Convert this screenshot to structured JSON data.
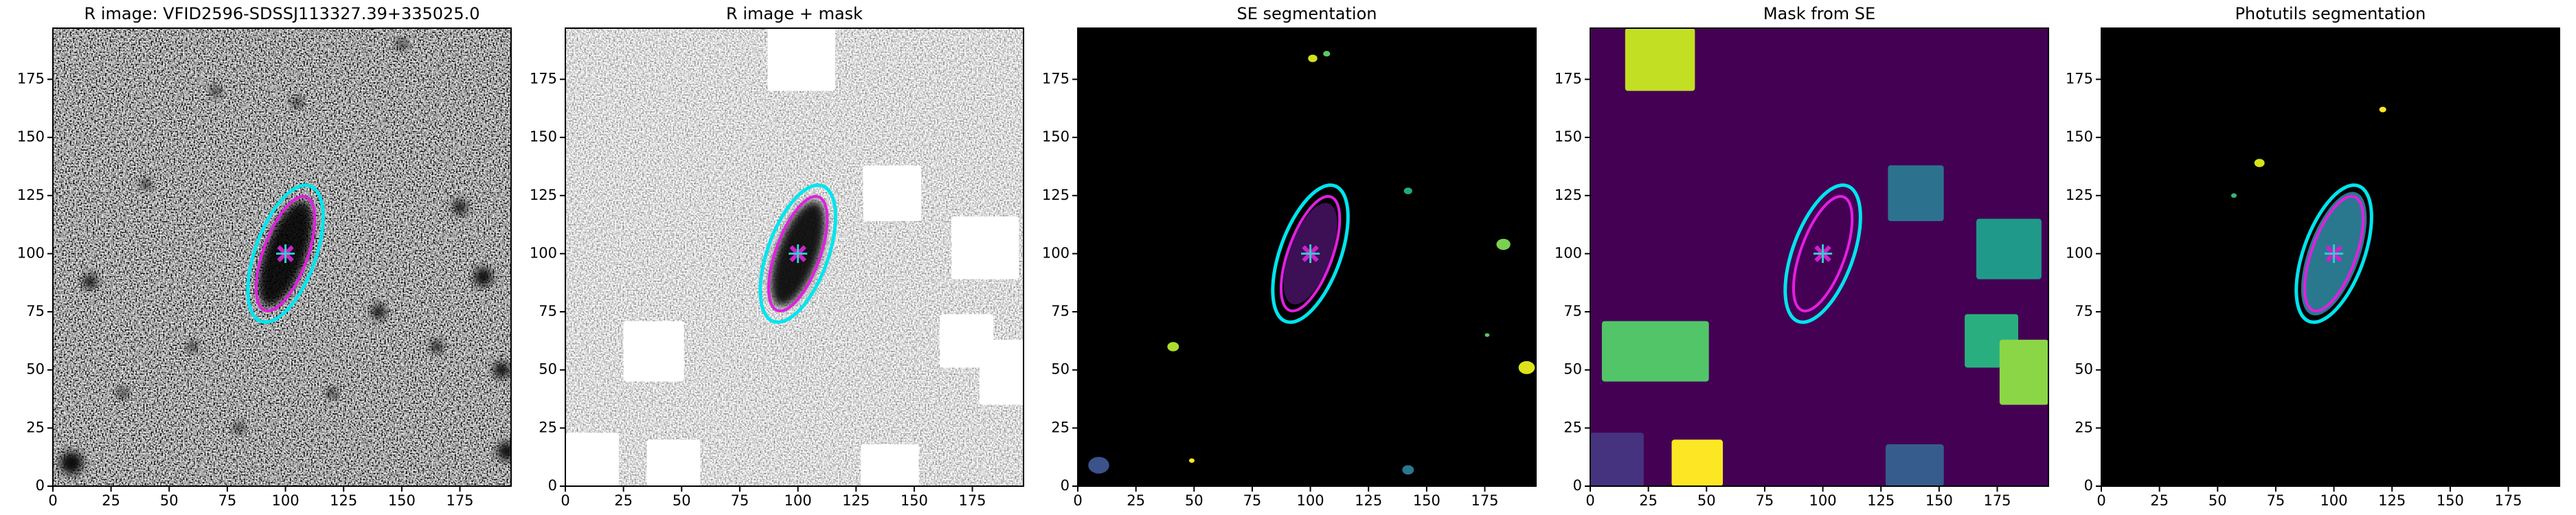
{
  "chart_data": [
    {
      "type": "image",
      "title": "R image: VFID2596-SDSSJ113327.39+335025.0",
      "xlim": [
        0,
        197
      ],
      "ylim": [
        0,
        197
      ],
      "xticks": [
        0,
        25,
        50,
        75,
        100,
        125,
        150,
        175
      ],
      "yticks": [
        0,
        25,
        50,
        75,
        100,
        125,
        150,
        175
      ]
    },
    {
      "type": "image",
      "title": "R image + mask",
      "xlim": [
        0,
        197
      ],
      "ylim": [
        0,
        197
      ],
      "xticks": [
        0,
        25,
        50,
        75,
        100,
        125,
        150,
        175
      ],
      "yticks": [
        0,
        25,
        50,
        75,
        100,
        125,
        150,
        175
      ]
    },
    {
      "type": "image",
      "title": "SE segmentation",
      "xlim": [
        0,
        197
      ],
      "ylim": [
        0,
        197
      ],
      "xticks": [
        0,
        25,
        50,
        75,
        100,
        125,
        150,
        175
      ],
      "yticks": [
        0,
        25,
        50,
        75,
        100,
        125,
        150,
        175
      ]
    },
    {
      "type": "image",
      "title": "Mask from SE",
      "xlim": [
        0,
        197
      ],
      "ylim": [
        0,
        197
      ],
      "xticks": [
        0,
        25,
        50,
        75,
        100,
        125,
        150,
        175
      ],
      "yticks": [
        0,
        25,
        50,
        75,
        100,
        125,
        150,
        175
      ]
    },
    {
      "type": "image",
      "title": "Photutils segmentation",
      "xlim": [
        0,
        197
      ],
      "ylim": [
        0,
        197
      ],
      "xticks": [
        0,
        25,
        50,
        75,
        100,
        125,
        150,
        175
      ],
      "yticks": [
        0,
        25,
        50,
        75,
        100,
        125,
        150,
        175
      ]
    }
  ]
}
